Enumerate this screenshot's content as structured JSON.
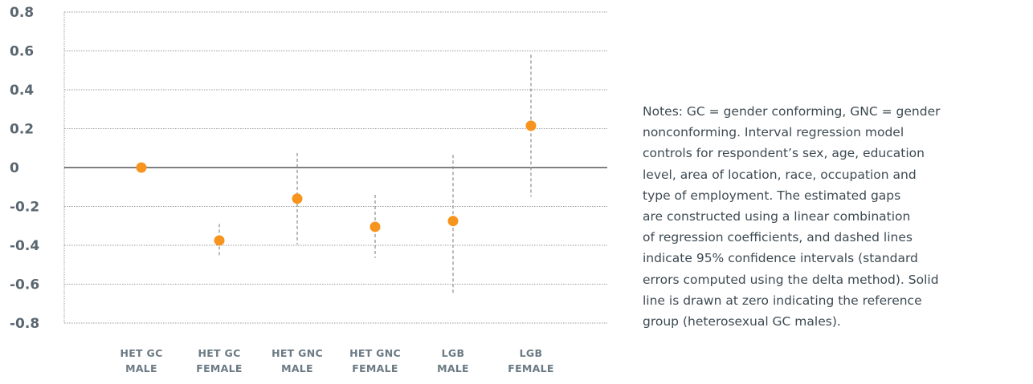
{
  "chart_data": {
    "type": "scatter",
    "title": "",
    "xlabel": "",
    "ylabel": "",
    "ylim": [
      -0.8,
      0.8
    ],
    "y_ticks": [
      "0.8",
      "0.6",
      "0.4",
      "0.2",
      "0",
      "-0.2",
      "-0.4",
      "-0.6",
      "-0.8"
    ],
    "y_tick_values": [
      0.8,
      0.6,
      0.4,
      0.2,
      0,
      -0.2,
      -0.4,
      -0.6,
      -0.8
    ],
    "grid": true,
    "reference_line": 0,
    "categories": [
      [
        "HET GC",
        "MALE"
      ],
      [
        "HET GC",
        "FEMALE"
      ],
      [
        "HET GNC",
        "MALE"
      ],
      [
        "HET GNC",
        "FEMALE"
      ],
      [
        "LGB",
        "MALE"
      ],
      [
        "LGB",
        "FEMALE"
      ]
    ],
    "points": [
      {
        "estimate": 0.0,
        "ci_low": null,
        "ci_high": null
      },
      {
        "estimate": -0.375,
        "ci_low": -0.46,
        "ci_high": -0.29
      },
      {
        "estimate": -0.16,
        "ci_low": -0.395,
        "ci_high": 0.075
      },
      {
        "estimate": -0.305,
        "ci_low": -0.465,
        "ci_high": -0.14
      },
      {
        "estimate": -0.275,
        "ci_low": -0.645,
        "ci_high": 0.065
      },
      {
        "estimate": 0.215,
        "ci_low": -0.15,
        "ci_high": 0.58
      }
    ],
    "colors": {
      "point": "#f7941d",
      "ci": "#8c8c8c",
      "grid": "#9a9a9a",
      "zero": "#333333",
      "tick": "#5a6770"
    }
  },
  "notes": {
    "lines": [
      "Notes: GC = gender conforming, GNC = gender",
      "nonconforming. Interval regression model",
      "controls for respondent’s sex, age, education",
      "level, area of location, race, occupation and",
      "type of employment. The estimated gaps",
      "are constructed using a linear combination",
      "of regression coefficients, and dashed lines",
      "indicate 95% confidence intervals (standard",
      "errors computed using the delta method). Solid",
      "line is drawn at zero indicating the reference",
      "group (heterosexual GC males)."
    ]
  }
}
